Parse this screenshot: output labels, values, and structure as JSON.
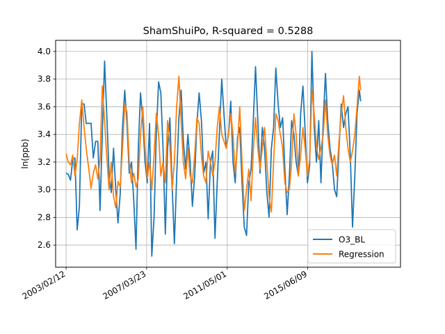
{
  "chart_data": {
    "type": "line",
    "title": "ShamShuiPo, R-squared = 0.5288",
    "xlabel": "",
    "ylabel": "ln(ppb)",
    "x_type": "date",
    "xlim": [
      "2002-08-01",
      "2020-03-01"
    ],
    "ylim": [
      2.44,
      4.08
    ],
    "xticks": [
      {
        "value": "2003-02-12",
        "label": "2003/02/12"
      },
      {
        "value": "2007-03-23",
        "label": "2007/03/23"
      },
      {
        "value": "2011-05-01",
        "label": "2011/05/01"
      },
      {
        "value": "2015-06-09",
        "label": "2015/06/09"
      }
    ],
    "yticks": [
      2.6,
      2.8,
      3.0,
      3.2,
      3.4,
      3.6,
      3.8,
      4.0
    ],
    "grid": true,
    "legend_position": "lower-right",
    "series": [
      {
        "name": "O3_BL",
        "color": "#1f77b4",
        "points": [
          [
            "2003-02-12",
            3.12
          ],
          [
            "2003-03-25",
            3.11
          ],
          [
            "2003-05-05",
            3.07
          ],
          [
            "2003-06-15",
            3.22
          ],
          [
            "2003-07-27",
            3.23
          ],
          [
            "2003-09-07",
            2.71
          ],
          [
            "2003-10-18",
            2.88
          ],
          [
            "2003-12-01",
            3.62
          ],
          [
            "2004-01-12",
            3.62
          ],
          [
            "2004-02-22",
            3.48
          ],
          [
            "2004-04-10",
            3.48
          ],
          [
            "2004-05-22",
            3.48
          ],
          [
            "2004-07-03",
            3.23
          ],
          [
            "2004-08-14",
            3.35
          ],
          [
            "2004-09-25",
            3.35
          ],
          [
            "2004-11-05",
            2.85
          ],
          [
            "2004-12-17",
            3.4
          ],
          [
            "2005-01-28",
            3.93
          ],
          [
            "2005-03-10",
            3.55
          ],
          [
            "2005-04-21",
            3.12
          ],
          [
            "2005-06-02",
            2.98
          ],
          [
            "2005-07-14",
            3.3
          ],
          [
            "2005-08-25",
            3.0
          ],
          [
            "2005-10-05",
            2.76
          ],
          [
            "2005-11-16",
            2.97
          ],
          [
            "2005-12-28",
            3.45
          ],
          [
            "2006-02-08",
            3.72
          ],
          [
            "2006-03-22",
            3.48
          ],
          [
            "2006-05-03",
            3.12
          ],
          [
            "2006-06-14",
            3.2
          ],
          [
            "2006-07-26",
            2.92
          ],
          [
            "2006-09-06",
            2.57
          ],
          [
            "2006-10-18",
            3.3
          ],
          [
            "2006-11-29",
            3.7
          ],
          [
            "2007-01-10",
            3.5
          ],
          [
            "2007-02-21",
            3.2
          ],
          [
            "2007-04-04",
            3.05
          ],
          [
            "2007-05-16",
            3.48
          ],
          [
            "2007-06-27",
            2.52
          ],
          [
            "2007-08-08",
            2.8
          ],
          [
            "2007-09-19",
            3.4
          ],
          [
            "2007-10-31",
            3.78
          ],
          [
            "2007-12-12",
            3.7
          ],
          [
            "2008-01-23",
            3.3
          ],
          [
            "2008-03-05",
            2.68
          ],
          [
            "2008-04-16",
            3.3
          ],
          [
            "2008-05-28",
            3.52
          ],
          [
            "2008-07-09",
            3.04
          ],
          [
            "2008-08-20",
            2.61
          ],
          [
            "2008-10-01",
            3.08
          ],
          [
            "2008-11-12",
            3.52
          ],
          [
            "2008-12-24",
            3.72
          ],
          [
            "2009-02-04",
            3.35
          ],
          [
            "2009-03-18",
            3.15
          ],
          [
            "2009-04-29",
            3.4
          ],
          [
            "2009-06-10",
            3.2
          ],
          [
            "2009-07-22",
            2.88
          ],
          [
            "2009-09-02",
            3.1
          ],
          [
            "2009-10-14",
            3.48
          ],
          [
            "2009-11-25",
            3.7
          ],
          [
            "2010-01-06",
            3.5
          ],
          [
            "2010-02-17",
            3.12
          ],
          [
            "2010-03-31",
            3.2
          ],
          [
            "2010-05-12",
            2.79
          ],
          [
            "2010-06-23",
            3.2
          ],
          [
            "2010-08-04",
            3.28
          ],
          [
            "2010-09-15",
            2.65
          ],
          [
            "2010-10-27",
            3.05
          ],
          [
            "2010-12-08",
            3.42
          ],
          [
            "2011-01-19",
            3.8
          ],
          [
            "2011-03-02",
            3.55
          ],
          [
            "2011-04-13",
            3.3
          ],
          [
            "2011-05-25",
            3.4
          ],
          [
            "2011-07-06",
            3.64
          ],
          [
            "2011-08-17",
            3.2
          ],
          [
            "2011-09-28",
            3.05
          ],
          [
            "2011-11-09",
            3.38
          ],
          [
            "2011-12-21",
            3.45
          ],
          [
            "2012-02-01",
            3.05
          ],
          [
            "2012-03-14",
            2.73
          ],
          [
            "2012-04-25",
            2.67
          ],
          [
            "2012-06-06",
            3.05
          ],
          [
            "2012-07-18",
            3.15
          ],
          [
            "2012-08-29",
            3.5
          ],
          [
            "2012-10-10",
            3.89
          ],
          [
            "2012-11-21",
            3.5
          ],
          [
            "2013-01-02",
            3.12
          ],
          [
            "2013-02-13",
            3.45
          ],
          [
            "2013-03-27",
            3.3
          ],
          [
            "2013-05-08",
            2.98
          ],
          [
            "2013-06-19",
            2.8
          ],
          [
            "2013-07-31",
            3.3
          ],
          [
            "2013-09-11",
            3.45
          ],
          [
            "2013-10-23",
            3.88
          ],
          [
            "2013-12-04",
            3.62
          ],
          [
            "2014-01-15",
            3.45
          ],
          [
            "2014-02-26",
            3.52
          ],
          [
            "2014-04-09",
            3.15
          ],
          [
            "2014-05-21",
            2.82
          ],
          [
            "2014-07-02",
            3.1
          ],
          [
            "2014-08-13",
            3.5
          ],
          [
            "2014-09-24",
            3.4
          ],
          [
            "2014-11-05",
            3.2
          ],
          [
            "2014-12-17",
            3.1
          ],
          [
            "2015-01-28",
            3.55
          ],
          [
            "2015-03-11",
            3.75
          ],
          [
            "2015-04-22",
            3.42
          ],
          [
            "2015-06-03",
            3.05
          ],
          [
            "2015-07-15",
            3.18
          ],
          [
            "2015-08-26",
            4.0
          ],
          [
            "2015-10-07",
            3.45
          ],
          [
            "2015-11-18",
            3.2
          ],
          [
            "2015-12-30",
            3.5
          ],
          [
            "2016-02-10",
            3.05
          ],
          [
            "2016-03-23",
            3.5
          ],
          [
            "2016-05-04",
            3.84
          ],
          [
            "2016-06-15",
            3.5
          ],
          [
            "2016-07-27",
            3.3
          ],
          [
            "2016-09-07",
            3.2
          ],
          [
            "2016-10-19",
            3.0
          ],
          [
            "2016-11-30",
            2.95
          ],
          [
            "2017-01-11",
            3.3
          ],
          [
            "2017-02-22",
            3.62
          ],
          [
            "2017-04-05",
            3.45
          ],
          [
            "2017-05-17",
            3.55
          ],
          [
            "2017-06-28",
            3.6
          ],
          [
            "2017-08-09",
            3.25
          ],
          [
            "2017-09-20",
            2.73
          ],
          [
            "2017-11-01",
            3.1
          ],
          [
            "2017-12-13",
            3.55
          ],
          [
            "2018-01-24",
            3.72
          ],
          [
            "2018-02-20",
            3.64
          ]
        ]
      },
      {
        "name": "Regression",
        "color": "#ff7f0e",
        "points": [
          [
            "2003-02-12",
            3.26
          ],
          [
            "2003-03-25",
            3.2
          ],
          [
            "2003-05-05",
            3.18
          ],
          [
            "2003-06-15",
            3.25
          ],
          [
            "2003-07-27",
            3.1
          ],
          [
            "2003-09-07",
            3.22
          ],
          [
            "2003-10-18",
            3.48
          ],
          [
            "2003-12-01",
            3.65
          ],
          [
            "2004-01-12",
            3.45
          ],
          [
            "2004-02-22",
            3.3
          ],
          [
            "2004-04-10",
            3.15
          ],
          [
            "2004-05-22",
            3.01
          ],
          [
            "2004-07-03",
            3.12
          ],
          [
            "2004-08-14",
            3.18
          ],
          [
            "2004-09-25",
            3.08
          ],
          [
            "2004-11-05",
            3.22
          ],
          [
            "2004-12-17",
            3.75
          ],
          [
            "2005-01-28",
            3.5
          ],
          [
            "2005-03-10",
            3.25
          ],
          [
            "2005-04-21",
            3.0
          ],
          [
            "2005-06-02",
            3.2
          ],
          [
            "2005-07-14",
            2.95
          ],
          [
            "2005-08-25",
            2.87
          ],
          [
            "2005-10-05",
            3.06
          ],
          [
            "2005-11-16",
            3.02
          ],
          [
            "2005-12-28",
            3.3
          ],
          [
            "2006-02-08",
            3.62
          ],
          [
            "2006-03-22",
            3.56
          ],
          [
            "2006-05-03",
            3.2
          ],
          [
            "2006-06-14",
            3.05
          ],
          [
            "2006-07-26",
            3.12
          ],
          [
            "2006-09-06",
            3.02
          ],
          [
            "2006-10-18",
            3.08
          ],
          [
            "2006-11-29",
            3.4
          ],
          [
            "2007-01-10",
            3.6
          ],
          [
            "2007-02-21",
            3.3
          ],
          [
            "2007-04-04",
            3.08
          ],
          [
            "2007-05-16",
            3.2
          ],
          [
            "2007-06-27",
            3.0
          ],
          [
            "2007-08-08",
            3.25
          ],
          [
            "2007-09-19",
            3.55
          ],
          [
            "2007-10-31",
            3.4
          ],
          [
            "2007-12-12",
            3.1
          ],
          [
            "2008-01-23",
            3.2
          ],
          [
            "2008-03-05",
            3.05
          ],
          [
            "2008-04-16",
            3.5
          ],
          [
            "2008-05-28",
            3.32
          ],
          [
            "2008-07-09",
            3.0
          ],
          [
            "2008-08-20",
            3.2
          ],
          [
            "2008-10-01",
            3.6
          ],
          [
            "2008-11-12",
            3.82
          ],
          [
            "2008-12-24",
            3.5
          ],
          [
            "2009-02-04",
            3.2
          ],
          [
            "2009-03-18",
            3.08
          ],
          [
            "2009-04-29",
            3.3
          ],
          [
            "2009-06-10",
            3.1
          ],
          [
            "2009-07-22",
            3.05
          ],
          [
            "2009-09-02",
            3.25
          ],
          [
            "2009-10-14",
            3.52
          ],
          [
            "2009-11-25",
            3.48
          ],
          [
            "2010-01-06",
            3.25
          ],
          [
            "2010-02-17",
            3.1
          ],
          [
            "2010-03-31",
            3.05
          ],
          [
            "2010-05-12",
            3.28
          ],
          [
            "2010-06-23",
            3.2
          ],
          [
            "2010-08-04",
            3.1
          ],
          [
            "2010-09-15",
            3.2
          ],
          [
            "2010-10-27",
            3.45
          ],
          [
            "2010-12-08",
            3.6
          ],
          [
            "2011-01-19",
            3.4
          ],
          [
            "2011-03-02",
            3.35
          ],
          [
            "2011-04-13",
            3.3
          ],
          [
            "2011-05-25",
            3.4
          ],
          [
            "2011-07-06",
            3.55
          ],
          [
            "2011-08-17",
            3.4
          ],
          [
            "2011-09-28",
            3.12
          ],
          [
            "2011-11-09",
            3.32
          ],
          [
            "2011-12-21",
            3.6
          ],
          [
            "2012-02-01",
            3.2
          ],
          [
            "2012-03-14",
            2.85
          ],
          [
            "2012-04-25",
            3.0
          ],
          [
            "2012-06-06",
            3.15
          ],
          [
            "2012-07-18",
            2.92
          ],
          [
            "2012-08-29",
            3.28
          ],
          [
            "2012-10-10",
            3.52
          ],
          [
            "2012-11-21",
            3.3
          ],
          [
            "2013-01-02",
            3.15
          ],
          [
            "2013-02-13",
            3.3
          ],
          [
            "2013-03-27",
            3.45
          ],
          [
            "2013-05-08",
            3.2
          ],
          [
            "2013-06-19",
            2.95
          ],
          [
            "2013-07-31",
            2.84
          ],
          [
            "2013-09-11",
            3.2
          ],
          [
            "2013-10-23",
            3.55
          ],
          [
            "2013-12-04",
            3.5
          ],
          [
            "2014-01-15",
            3.4
          ],
          [
            "2014-02-26",
            3.3
          ],
          [
            "2014-04-09",
            3.05
          ],
          [
            "2014-05-21",
            2.98
          ],
          [
            "2014-07-02",
            3.0
          ],
          [
            "2014-08-13",
            3.2
          ],
          [
            "2014-09-24",
            3.55
          ],
          [
            "2014-11-05",
            3.4
          ],
          [
            "2014-12-17",
            3.1
          ],
          [
            "2015-01-28",
            3.25
          ],
          [
            "2015-03-11",
            3.45
          ],
          [
            "2015-04-22",
            3.3
          ],
          [
            "2015-06-03",
            3.1
          ],
          [
            "2015-07-15",
            3.22
          ],
          [
            "2015-08-26",
            3.72
          ],
          [
            "2015-10-07",
            3.55
          ],
          [
            "2015-11-18",
            3.32
          ],
          [
            "2015-12-30",
            3.22
          ],
          [
            "2016-02-10",
            3.3
          ],
          [
            "2016-03-23",
            3.4
          ],
          [
            "2016-05-04",
            3.65
          ],
          [
            "2016-06-15",
            3.4
          ],
          [
            "2016-07-27",
            3.25
          ],
          [
            "2016-09-07",
            3.18
          ],
          [
            "2016-10-19",
            3.25
          ],
          [
            "2016-11-30",
            3.1
          ],
          [
            "2017-01-11",
            3.35
          ],
          [
            "2017-02-22",
            3.55
          ],
          [
            "2017-04-05",
            3.68
          ],
          [
            "2017-05-17",
            3.45
          ],
          [
            "2017-06-28",
            3.3
          ],
          [
            "2017-08-09",
            3.2
          ],
          [
            "2017-09-20",
            3.28
          ],
          [
            "2017-11-01",
            3.4
          ],
          [
            "2017-12-13",
            3.6
          ],
          [
            "2018-01-24",
            3.82
          ],
          [
            "2018-02-20",
            3.72
          ]
        ]
      }
    ]
  }
}
